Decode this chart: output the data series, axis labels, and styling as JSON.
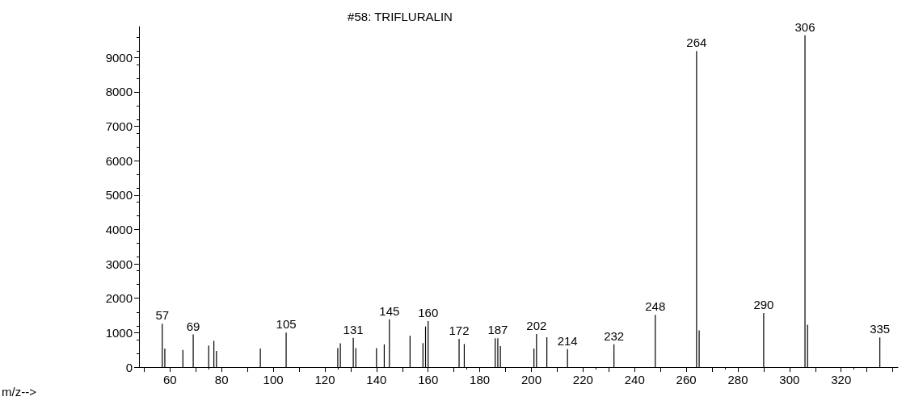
{
  "chart_data": {
    "type": "bar",
    "title": "#58: TRIFLURALIN",
    "x": [
      57,
      58,
      65,
      69,
      75,
      77,
      78,
      95,
      105,
      125,
      126,
      131,
      132,
      140,
      143,
      145,
      153,
      158,
      159,
      160,
      172,
      174,
      186,
      187,
      188,
      201,
      202,
      206,
      214,
      232,
      248,
      264,
      265,
      290,
      306,
      307,
      335
    ],
    "values": [
      1260,
      540,
      500,
      950,
      630,
      760,
      470,
      540,
      1000,
      550,
      690,
      850,
      550,
      550,
      660,
      1390,
      910,
      700,
      1180,
      1340,
      820,
      670,
      840,
      840,
      610,
      540,
      960,
      870,
      520,
      660,
      1520,
      9190,
      1070,
      1570,
      9650,
      1230,
      860
    ],
    "annotations": [
      {
        "text": "57",
        "x": 57,
        "y": 1260
      },
      {
        "text": "69",
        "x": 69,
        "y": 950
      },
      {
        "text": "105",
        "x": 105,
        "y": 1000
      },
      {
        "text": "131",
        "x": 131,
        "y": 850
      },
      {
        "text": "145",
        "x": 145,
        "y": 1390
      },
      {
        "text": "160",
        "x": 160,
        "y": 1340
      },
      {
        "text": "172",
        "x": 172,
        "y": 820
      },
      {
        "text": "187",
        "x": 187,
        "y": 840
      },
      {
        "text": "202",
        "x": 202,
        "y": 960
      },
      {
        "text": "214",
        "x": 214,
        "y": 520
      },
      {
        "text": "232",
        "x": 232,
        "y": 660
      },
      {
        "text": "248",
        "x": 248,
        "y": 1520
      },
      {
        "text": "264",
        "x": 264,
        "y": 9190
      },
      {
        "text": "290",
        "x": 290,
        "y": 1570
      },
      {
        "text": "306",
        "x": 306,
        "y": 9650
      },
      {
        "text": "335",
        "x": 335,
        "y": 860
      },
      "m/z-->"
    ],
    "color": "#000000",
    "xlim": [
      48,
      342
    ],
    "xticks": [
      {
        "value": 50,
        "label": null
      },
      60,
      {
        "value": 70,
        "label": null
      },
      80,
      {
        "value": 90,
        "label": null
      },
      100,
      {
        "value": 110,
        "label": null
      },
      120,
      {
        "value": 130,
        "label": null
      },
      140,
      {
        "value": 150,
        "label": null
      },
      160,
      {
        "value": 170,
        "label": null
      },
      180,
      {
        "value": 190,
        "label": null
      },
      200,
      {
        "value": 210,
        "label": null
      },
      220,
      {
        "value": 230,
        "label": null
      },
      240,
      {
        "value": 250,
        "label": null
      },
      260,
      {
        "value": 270,
        "label": null
      },
      280,
      {
        "value": 290,
        "label": null
      },
      300,
      {
        "value": 310,
        "label": null
      },
      320,
      {
        "value": 330,
        "label": null
      },
      {
        "value": 340,
        "label": null
      }
    ],
    "ylim": [
      0,
      9900
    ],
    "yticks": [
      0,
      1000,
      2000,
      3000,
      4000,
      5000,
      6000,
      7000,
      8000,
      9000
    ],
    "grid": false
  }
}
